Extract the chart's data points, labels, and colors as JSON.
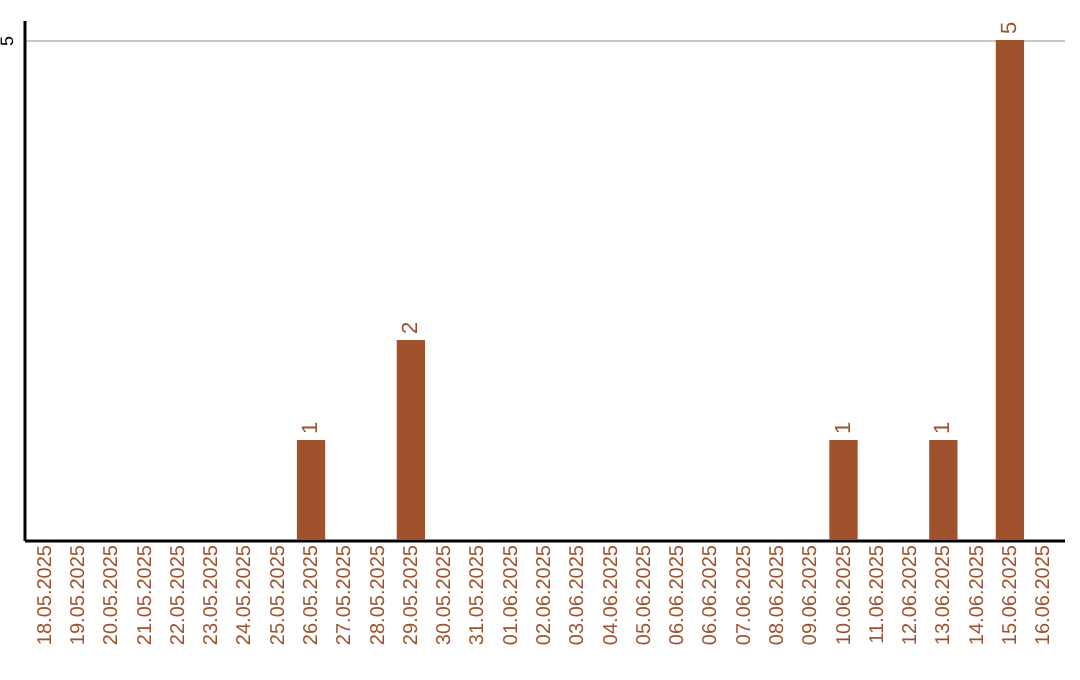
{
  "chart_data": {
    "type": "bar",
    "categories": [
      "18.05.2025",
      "19.05.2025",
      "20.05.2025",
      "21.05.2025",
      "22.05.2025",
      "23.05.2025",
      "24.05.2025",
      "25.05.2025",
      "26.05.2025",
      "27.05.2025",
      "28.05.2025",
      "29.05.2025",
      "30.05.2025",
      "31.05.2025",
      "01.06.2025",
      "02.06.2025",
      "03.06.2025",
      "04.06.2025",
      "05.06.2025",
      "06.06.2025",
      "06.06.2025",
      "07.06.2025",
      "08.06.2025",
      "09.06.2025",
      "10.06.2025",
      "11.06.2025",
      "12.06.2025",
      "13.06.2025",
      "14.06.2025",
      "15.06.2025",
      "16.06.2025"
    ],
    "values": [
      0,
      0,
      0,
      0,
      0,
      0,
      0,
      0,
      1,
      0,
      0,
      2,
      0,
      0,
      0,
      0,
      0,
      0,
      0,
      0,
      0,
      0,
      0,
      0,
      1,
      0,
      0,
      1,
      0,
      5,
      0
    ],
    "value_labels": [
      null,
      null,
      null,
      null,
      null,
      null,
      null,
      null,
      "1",
      null,
      null,
      "2",
      null,
      null,
      null,
      null,
      null,
      null,
      null,
      null,
      null,
      null,
      null,
      null,
      "1",
      null,
      null,
      "1",
      null,
      "5",
      null
    ],
    "color": "#a0522d",
    "ylim": [
      0,
      5.2
    ],
    "yticks": [
      5
    ],
    "grid": "y"
  }
}
